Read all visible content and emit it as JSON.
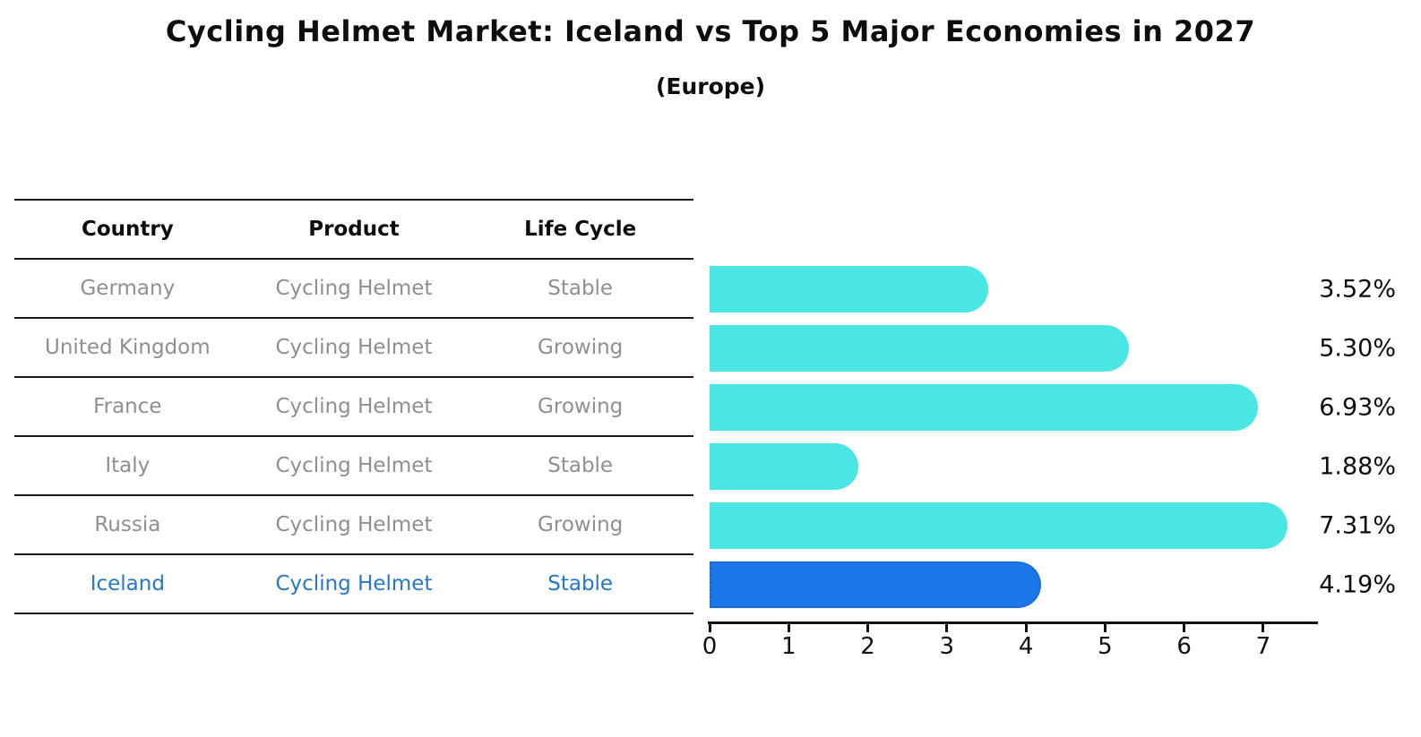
{
  "title": "Cycling Helmet Market: Iceland vs Top 5 Major Economies in 2027",
  "subtitle": "(Europe)",
  "colors": {
    "bar": "#4AE6E4",
    "highlight_bar": "#1C78E8",
    "highlight_border": "#1565CB",
    "highlight_text": "#2577CB",
    "table_text": "#8F8F8F",
    "heading_text": "#0D0D0D"
  },
  "table": {
    "headers": [
      "Country",
      "Product",
      "Life Cycle"
    ],
    "rows": [
      {
        "country": "Germany",
        "product": "Cycling Helmet",
        "life_cycle": "Stable",
        "highlight": false
      },
      {
        "country": "United Kingdom",
        "product": "Cycling Helmet",
        "life_cycle": "Growing",
        "highlight": false
      },
      {
        "country": "France",
        "product": "Cycling Helmet",
        "life_cycle": "Growing",
        "highlight": false
      },
      {
        "country": "Italy",
        "product": "Cycling Helmet",
        "life_cycle": "Stable",
        "highlight": false
      },
      {
        "country": "Russia",
        "product": "Cycling Helmet",
        "life_cycle": "Growing",
        "highlight": false
      },
      {
        "country": "Iceland",
        "product": "Cycling Helmet",
        "life_cycle": "Stable",
        "highlight": true
      }
    ]
  },
  "chart_data": {
    "type": "bar",
    "orientation": "horizontal",
    "title": "Cycling Helmet Market: Iceland vs Top 5 Major Economies in 2027 (Europe)",
    "xlabel": "",
    "ylabel": "",
    "categories": [
      "Germany",
      "United Kingdom",
      "France",
      "Italy",
      "Russia",
      "Iceland"
    ],
    "values": [
      3.52,
      5.3,
      6.93,
      1.88,
      7.31,
      4.19
    ],
    "value_labels": [
      "3.52%",
      "5.30%",
      "6.93%",
      "1.88%",
      "7.31%",
      "4.19%"
    ],
    "highlight_category": "Iceland",
    "x_ticks": [
      0,
      1,
      2,
      3,
      4,
      5,
      6,
      7
    ],
    "xlim": [
      0,
      7.69
    ],
    "grid": false,
    "legend": false
  }
}
